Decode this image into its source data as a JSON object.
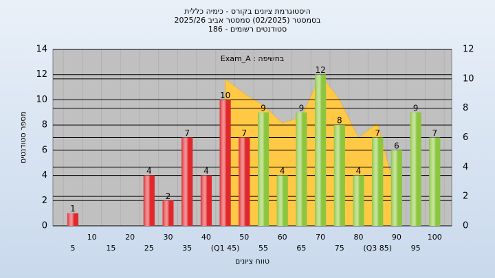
{
  "chart_data": {
    "type": "bar",
    "title": "היסטוגרמת ציונים בקורס - כימיה כללית",
    "subtitle": "בסמסטר  (02/2025)  סמסטר אביב 2025/26",
    "subtitle2": "סטודנטים רשומים - 186",
    "annotation": "Exam_A : בחשיפה",
    "x_label": "טווח ציונים",
    "y_label": "מספר סטודנטים",
    "categories": [
      "5",
      "10",
      "15",
      "20",
      "25",
      "30",
      "35",
      "40",
      "(Q1 45)",
      "50",
      "55",
      "60",
      "65",
      "70",
      "75",
      "80",
      "(Q3 85)",
      "90",
      "95",
      "100"
    ],
    "values": [
      1,
      0,
      0,
      0,
      4,
      2,
      7,
      4,
      10,
      7,
      9,
      4,
      9,
      12,
      8,
      4,
      7,
      6,
      9,
      7
    ],
    "colors": [
      "#e0282c",
      "#e0282c",
      "#e0282c",
      "#e0282c",
      "#e0282c",
      "#e0282c",
      "#e0282c",
      "#e0282c",
      "#e0282c",
      "#e0282c",
      "#8cc63e",
      "#8cc63e",
      "#8cc63e",
      "#8cc63e",
      "#8cc63e",
      "#8cc63e",
      "#8cc63e",
      "#8cc63e",
      "#8cc63e",
      "#8cc63e"
    ],
    "area": {
      "color": "#ffc845",
      "axis": "y2",
      "values": [
        null,
        null,
        null,
        null,
        null,
        null,
        null,
        null,
        10,
        9,
        8.2,
        7,
        7.4,
        10.3,
        8.6,
        6,
        7,
        2,
        null,
        null
      ]
    },
    "ylim": [
      0,
      14
    ],
    "yticks": [
      0,
      2,
      4,
      6,
      8,
      10,
      12,
      14
    ],
    "y2lim": [
      0,
      12
    ],
    "y2ticks": [
      0,
      2,
      4,
      6,
      8,
      10,
      12
    ],
    "grid": true
  }
}
